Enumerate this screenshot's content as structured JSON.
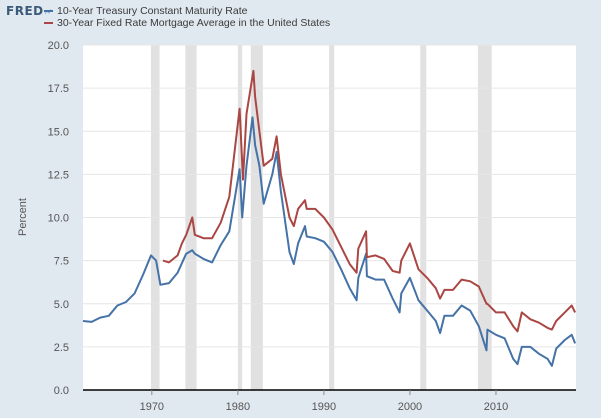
{
  "header": {
    "logo_text": "FRED"
  },
  "colors": {
    "background": "#e1e9f0",
    "plot_area": "#ffffff",
    "recession_band": "#e1e1e1",
    "treasury_line": "#4572a7",
    "mortgage_line": "#aa4643"
  },
  "chart_data": {
    "type": "line",
    "title": "",
    "xlabel": "",
    "ylabel": "Percent",
    "xlim": [
      1962,
      2019.3
    ],
    "ylim": [
      0,
      20
    ],
    "x_ticks": [
      1970,
      1980,
      1990,
      2000,
      2010
    ],
    "y_ticks": [
      0.0,
      2.5,
      5.0,
      7.5,
      10.0,
      12.5,
      15.0,
      17.5,
      20.0
    ],
    "y_tick_labels": [
      "0.0",
      "2.5",
      "5.0",
      "7.5",
      "10.0",
      "12.5",
      "15.0",
      "17.5",
      "20.0"
    ],
    "grid": "horizontal",
    "legend_position": "top-left",
    "recessions": [
      [
        1969.9,
        1970.9
      ],
      [
        1973.9,
        1975.2
      ],
      [
        1980.0,
        1980.5
      ],
      [
        1981.5,
        1982.9
      ],
      [
        1990.6,
        1991.2
      ],
      [
        2001.2,
        2001.9
      ],
      [
        2007.9,
        2009.5
      ]
    ],
    "series": [
      {
        "name": "10-Year Treasury Constant Maturity Rate",
        "color": "#4572a7",
        "x": [
          1962,
          1963,
          1964,
          1965,
          1966,
          1967,
          1968,
          1969,
          1969.9,
          1970.5,
          1971,
          1972,
          1973,
          1974,
          1974.7,
          1975,
          1976,
          1977,
          1978,
          1979,
          1980.2,
          1980.5,
          1981,
          1981.7,
          1982,
          1982.5,
          1983,
          1984,
          1984.5,
          1985,
          1986,
          1986.5,
          1987,
          1987.8,
          1988,
          1989,
          1990,
          1991,
          1992,
          1993,
          1993.8,
          1994,
          1994.9,
          1995,
          1996,
          1997,
          1998,
          1998.8,
          1999,
          2000,
          2001,
          2002,
          2003,
          2003.5,
          2004,
          2005,
          2006,
          2007,
          2008,
          2008.9,
          2009,
          2010,
          2011,
          2012,
          2012.5,
          2013,
          2014,
          2015,
          2016,
          2016.5,
          2017,
          2018,
          2018.8,
          2019.2
        ],
        "values": [
          4.0,
          3.95,
          4.2,
          4.3,
          4.9,
          5.1,
          5.6,
          6.7,
          7.8,
          7.5,
          6.1,
          6.2,
          6.8,
          7.9,
          8.1,
          7.9,
          7.6,
          7.4,
          8.4,
          9.2,
          12.8,
          10.0,
          13.0,
          15.8,
          14.2,
          13.0,
          10.8,
          12.5,
          13.8,
          11.5,
          8.0,
          7.3,
          8.5,
          9.5,
          8.9,
          8.8,
          8.6,
          8.0,
          7.0,
          5.9,
          5.2,
          6.5,
          7.9,
          6.6,
          6.4,
          6.4,
          5.3,
          4.5,
          5.6,
          6.5,
          5.2,
          4.6,
          4.0,
          3.3,
          4.3,
          4.3,
          4.9,
          4.6,
          3.7,
          2.3,
          3.5,
          3.2,
          3.0,
          1.8,
          1.5,
          2.5,
          2.5,
          2.1,
          1.8,
          1.4,
          2.4,
          2.9,
          3.2,
          2.7
        ]
      },
      {
        "name": "30-Year Fixed Rate Mortgage Average in the United States",
        "color": "#aa4643",
        "x": [
          1971.3,
          1972,
          1973,
          1973.5,
          1974,
          1974.7,
          1975,
          1976,
          1977,
          1978,
          1979,
          1980.2,
          1980.6,
          1981,
          1981.8,
          1982,
          1982.5,
          1983,
          1984,
          1984.5,
          1985,
          1986,
          1986.5,
          1987,
          1987.8,
          1988,
          1989,
          1990,
          1991,
          1992,
          1993,
          1993.8,
          1994,
          1994.9,
          1995,
          1996,
          1997,
          1998,
          1998.8,
          1999,
          2000,
          2001,
          2002,
          2003,
          2003.5,
          2004,
          2005,
          2006,
          2007,
          2008,
          2008.9,
          2009,
          2010,
          2011,
          2012,
          2012.5,
          2013,
          2014,
          2015,
          2016,
          2016.5,
          2017,
          2018,
          2018.8,
          2019.2
        ],
        "values": [
          7.5,
          7.4,
          7.8,
          8.5,
          9.0,
          10.0,
          9.0,
          8.8,
          8.8,
          9.7,
          11.2,
          16.3,
          12.2,
          16.0,
          18.5,
          17.0,
          15.0,
          13.0,
          13.4,
          14.7,
          12.5,
          10.0,
          9.5,
          10.5,
          11.0,
          10.5,
          10.5,
          10.0,
          9.3,
          8.3,
          7.3,
          6.8,
          8.2,
          9.2,
          7.7,
          7.8,
          7.6,
          6.9,
          6.8,
          7.5,
          8.5,
          7.0,
          6.5,
          5.9,
          5.3,
          5.8,
          5.8,
          6.4,
          6.3,
          6.0,
          5.0,
          5.0,
          4.5,
          4.5,
          3.7,
          3.4,
          4.5,
          4.1,
          3.9,
          3.6,
          3.5,
          4.0,
          4.5,
          4.9,
          4.5
        ]
      }
    ]
  }
}
